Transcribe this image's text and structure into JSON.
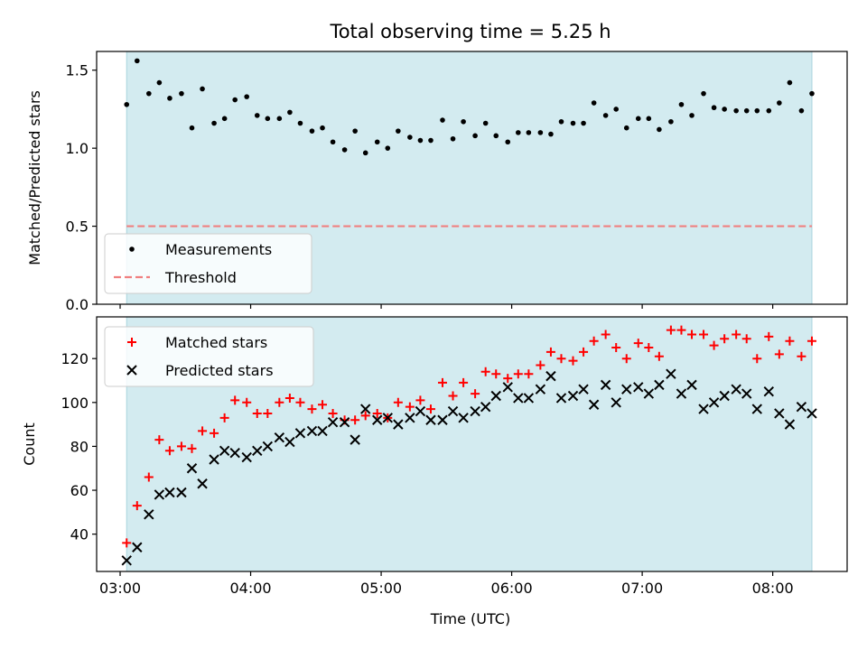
{
  "chart_data": [
    {
      "type": "scatter",
      "title": "Total observing time = 5.25 h",
      "xlabel": "",
      "ylabel": "Matched/Predicted stars",
      "ylim": [
        0.0,
        1.62
      ],
      "yticks": [
        "0.0",
        "0.5",
        "1.0",
        "1.5"
      ],
      "ytick_values": [
        0.0,
        0.5,
        1.0,
        1.5
      ],
      "shaded_span_hours": [
        3.05,
        8.3
      ],
      "shaded_color": "#d3ebf0",
      "legend": {
        "placement": "lower-left",
        "entries": [
          "Measurements",
          "Threshold"
        ]
      },
      "series": [
        {
          "name": "Measurements",
          "marker": "dot",
          "color": "#000000",
          "x": [
            3.05,
            3.13,
            3.22,
            3.3,
            3.38,
            3.47,
            3.55,
            3.63,
            3.72,
            3.8,
            3.88,
            3.97,
            4.05,
            4.13,
            4.22,
            4.3,
            4.38,
            4.47,
            4.55,
            4.63,
            4.72,
            4.8,
            4.88,
            4.97,
            5.05,
            5.13,
            5.22,
            5.3,
            5.38,
            5.47,
            5.55,
            5.63,
            5.72,
            5.8,
            5.88,
            5.97,
            6.05,
            6.13,
            6.22,
            6.3,
            6.38,
            6.47,
            6.55,
            6.63,
            6.72,
            6.8,
            6.88,
            6.97,
            7.05,
            7.13,
            7.22,
            7.3,
            7.38,
            7.47,
            7.55,
            7.63,
            7.72,
            7.8,
            7.88,
            7.97,
            8.05,
            8.13,
            8.22,
            8.3
          ],
          "y": [
            1.28,
            1.56,
            1.35,
            1.42,
            1.32,
            1.35,
            1.13,
            1.38,
            1.16,
            1.19,
            1.31,
            1.33,
            1.21,
            1.19,
            1.19,
            1.23,
            1.16,
            1.11,
            1.13,
            1.04,
            0.99,
            1.11,
            0.97,
            1.04,
            1.0,
            1.11,
            1.07,
            1.05,
            1.05,
            1.18,
            1.06,
            1.17,
            1.08,
            1.16,
            1.08,
            1.04,
            1.1,
            1.1,
            1.1,
            1.09,
            1.17,
            1.16,
            1.16,
            1.29,
            1.21,
            1.25,
            1.13,
            1.19,
            1.19,
            1.12,
            1.17,
            1.28,
            1.21,
            1.35,
            1.26,
            1.25,
            1.24,
            1.24,
            1.24,
            1.24,
            1.29,
            1.42,
            1.24,
            1.35
          ]
        },
        {
          "name": "Threshold",
          "marker": "dashed-line",
          "color": "#f08080",
          "x": [
            3.05,
            8.3
          ],
          "y": [
            0.5,
            0.5
          ]
        }
      ]
    },
    {
      "type": "scatter",
      "title": "",
      "xlabel": "Time (UTC)",
      "ylabel": "Count",
      "ylim": [
        23,
        139
      ],
      "yticks": [
        "40",
        "60",
        "80",
        "100",
        "120"
      ],
      "ytick_values": [
        40,
        60,
        80,
        100,
        120
      ],
      "xlim_hours": [
        2.82,
        8.57
      ],
      "xticks": [
        "03:00",
        "04:00",
        "05:00",
        "06:00",
        "07:00",
        "08:00"
      ],
      "xtick_values": [
        3,
        4,
        5,
        6,
        7,
        8
      ],
      "shaded_span_hours": [
        3.05,
        8.3
      ],
      "shaded_color": "#d3ebf0",
      "legend": {
        "placement": "upper-left",
        "entries": [
          "Matched stars",
          "Predicted stars"
        ]
      },
      "series": [
        {
          "name": "Matched stars",
          "marker": "plus",
          "color": "#ff0000",
          "x": [
            3.05,
            3.13,
            3.22,
            3.3,
            3.38,
            3.47,
            3.55,
            3.63,
            3.72,
            3.8,
            3.88,
            3.97,
            4.05,
            4.13,
            4.22,
            4.3,
            4.38,
            4.47,
            4.55,
            4.63,
            4.72,
            4.8,
            4.88,
            4.97,
            5.05,
            5.13,
            5.22,
            5.3,
            5.38,
            5.47,
            5.55,
            5.63,
            5.72,
            5.8,
            5.88,
            5.97,
            6.05,
            6.13,
            6.22,
            6.3,
            6.38,
            6.47,
            6.55,
            6.63,
            6.72,
            6.8,
            6.88,
            6.97,
            7.05,
            7.13,
            7.22,
            7.3,
            7.38,
            7.47,
            7.55,
            7.63,
            7.72,
            7.8,
            7.88,
            7.97,
            8.05,
            8.13,
            8.22,
            8.3
          ],
          "y": [
            36,
            53,
            66,
            83,
            78,
            80,
            79,
            87,
            86,
            93,
            101,
            100,
            95,
            95,
            100,
            102,
            100,
            97,
            99,
            95,
            92,
            92,
            94,
            95,
            93,
            100,
            98,
            101,
            97,
            109,
            103,
            109,
            104,
            114,
            113,
            111,
            113,
            113,
            117,
            123,
            120,
            119,
            123,
            128,
            131,
            125,
            120,
            127,
            125,
            121,
            133,
            133,
            131,
            131,
            126,
            129,
            131,
            129,
            120,
            130,
            122,
            128,
            121,
            128
          ]
        },
        {
          "name": "Predicted stars",
          "marker": "x",
          "color": "#000000",
          "x": [
            3.05,
            3.13,
            3.22,
            3.3,
            3.38,
            3.47,
            3.55,
            3.63,
            3.72,
            3.8,
            3.88,
            3.97,
            4.05,
            4.13,
            4.22,
            4.3,
            4.38,
            4.47,
            4.55,
            4.63,
            4.72,
            4.8,
            4.88,
            4.97,
            5.05,
            5.13,
            5.22,
            5.3,
            5.38,
            5.47,
            5.55,
            5.63,
            5.72,
            5.8,
            5.88,
            5.97,
            6.05,
            6.13,
            6.22,
            6.3,
            6.38,
            6.47,
            6.55,
            6.63,
            6.72,
            6.8,
            6.88,
            6.97,
            7.05,
            7.13,
            7.22,
            7.3,
            7.38,
            7.47,
            7.55,
            7.63,
            7.72,
            7.8,
            7.88,
            7.97,
            8.05,
            8.13,
            8.22,
            8.3
          ],
          "y": [
            28,
            34,
            49,
            58,
            59,
            59,
            70,
            63,
            74,
            78,
            77,
            75,
            78,
            80,
            84,
            82,
            86,
            87,
            87,
            91,
            91,
            83,
            97,
            92,
            93,
            90,
            93,
            96,
            92,
            92,
            96,
            93,
            96,
            98,
            103,
            107,
            102,
            102,
            106,
            112,
            102,
            103,
            106,
            99,
            108,
            100,
            106,
            107,
            104,
            108,
            113,
            104,
            108,
            97,
            100,
            103,
            106,
            104,
            97,
            105,
            95,
            90,
            98,
            95
          ]
        }
      ]
    }
  ]
}
